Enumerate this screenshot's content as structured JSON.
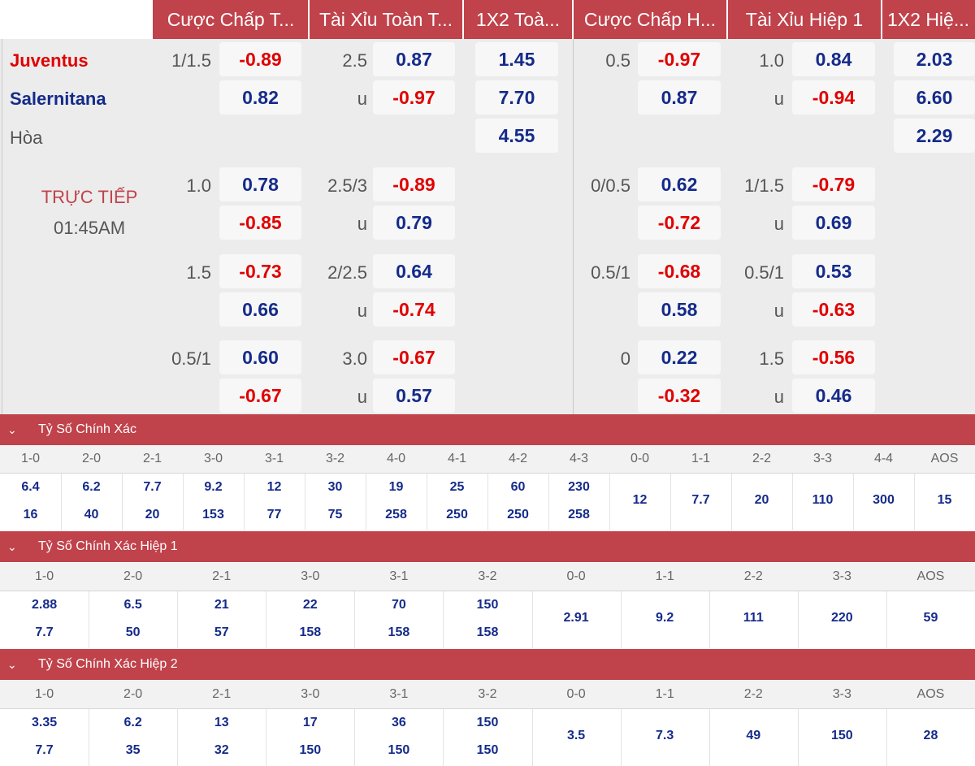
{
  "headers": [
    "Cược Chấp T...",
    "Tài Xỉu Toàn T...",
    "1X2 Toà...",
    "Cược Chấp H...",
    "Tài Xỉu Hiệp 1",
    "1X2 Hiệ..."
  ],
  "teams": {
    "home": "Juventus",
    "away": "Salernitana",
    "draw": "Hòa"
  },
  "colors": {
    "accent": "#c0424b",
    "negative": "#e00000",
    "positive": "#152b8a"
  },
  "status": {
    "live": "TRỰC TIẾP",
    "time": "01:45AM"
  },
  "main_line": {
    "ah_full": {
      "line": "1/1.5",
      "home": "-0.89",
      "away": "0.82"
    },
    "ou_full": {
      "line": "2.5",
      "over": "0.87",
      "u_label": "u",
      "under": "-0.97"
    },
    "x12_full": {
      "home": "1.45",
      "away": "7.70",
      "draw": "4.55"
    },
    "ah_half": {
      "line": "0.5",
      "home": "-0.97",
      "away": "0.87"
    },
    "ou_half": {
      "line": "1.0",
      "over": "0.84",
      "u_label": "u",
      "under": "-0.94"
    },
    "x12_half": {
      "home": "2.03",
      "away": "6.60",
      "draw": "2.29"
    }
  },
  "alt_lines": [
    {
      "ah_full": {
        "line": "1.0",
        "home": "0.78",
        "away": "-0.85"
      },
      "ou_full": {
        "line": "2.5/3",
        "over": "-0.89",
        "u_label": "u",
        "under": "0.79"
      },
      "ah_half": {
        "line": "0/0.5",
        "home": "0.62",
        "away": "-0.72"
      },
      "ou_half": {
        "line": "1/1.5",
        "over": "-0.79",
        "u_label": "u",
        "under": "0.69"
      }
    },
    {
      "ah_full": {
        "line": "1.5",
        "home": "-0.73",
        "away": "0.66"
      },
      "ou_full": {
        "line": "2/2.5",
        "over": "0.64",
        "u_label": "u",
        "under": "-0.74"
      },
      "ah_half": {
        "line": "0.5/1",
        "home": "-0.68",
        "away": "0.58"
      },
      "ou_half": {
        "line": "0.5/1",
        "over": "0.53",
        "u_label": "u",
        "under": "-0.63"
      }
    },
    {
      "ah_full": {
        "line": "0.5/1",
        "home": "0.60",
        "away": "-0.67"
      },
      "ou_full": {
        "line": "3.0",
        "over": "-0.67",
        "u_label": "u",
        "under": "0.57"
      },
      "ah_half": {
        "line": "0",
        "home": "0.22",
        "away": "-0.32"
      },
      "ou_half": {
        "line": "1.5",
        "over": "-0.56",
        "u_label": "u",
        "under": "0.46"
      }
    }
  ],
  "correct_score": {
    "title": "Tỷ Số Chính Xác",
    "cols": [
      "1-0",
      "2-0",
      "2-1",
      "3-0",
      "3-1",
      "3-2",
      "4-0",
      "4-1",
      "4-2",
      "4-3",
      "0-0",
      "1-1",
      "2-2",
      "3-3",
      "4-4",
      "AOS"
    ],
    "values": [
      [
        "6.4",
        "16"
      ],
      [
        "6.2",
        "40"
      ],
      [
        "7.7",
        "20"
      ],
      [
        "9.2",
        "153"
      ],
      [
        "12",
        "77"
      ],
      [
        "30",
        "75"
      ],
      [
        "19",
        "258"
      ],
      [
        "25",
        "250"
      ],
      [
        "60",
        "250"
      ],
      [
        "230",
        "258"
      ],
      [
        "12"
      ],
      [
        "7.7"
      ],
      [
        "20"
      ],
      [
        "110"
      ],
      [
        "300"
      ],
      [
        "15"
      ]
    ]
  },
  "correct_score_h1": {
    "title": "Tỷ Số Chính Xác Hiệp 1",
    "cols": [
      "1-0",
      "2-0",
      "2-1",
      "3-0",
      "3-1",
      "3-2",
      "0-0",
      "1-1",
      "2-2",
      "3-3",
      "AOS"
    ],
    "values": [
      [
        "2.88",
        "7.7"
      ],
      [
        "6.5",
        "50"
      ],
      [
        "21",
        "57"
      ],
      [
        "22",
        "158"
      ],
      [
        "70",
        "158"
      ],
      [
        "150",
        "158"
      ],
      [
        "2.91"
      ],
      [
        "9.2"
      ],
      [
        "111"
      ],
      [
        "220"
      ],
      [
        "59"
      ]
    ]
  },
  "correct_score_h2": {
    "title": "Tỷ Số Chính Xác Hiệp 2",
    "cols": [
      "1-0",
      "2-0",
      "2-1",
      "3-0",
      "3-1",
      "3-2",
      "0-0",
      "1-1",
      "2-2",
      "3-3",
      "AOS"
    ],
    "values": [
      [
        "3.35",
        "7.7"
      ],
      [
        "6.2",
        "35"
      ],
      [
        "13",
        "32"
      ],
      [
        "17",
        "150"
      ],
      [
        "36",
        "150"
      ],
      [
        "150",
        "150"
      ],
      [
        "3.5"
      ],
      [
        "7.3"
      ],
      [
        "49"
      ],
      [
        "150"
      ],
      [
        "28"
      ]
    ]
  }
}
